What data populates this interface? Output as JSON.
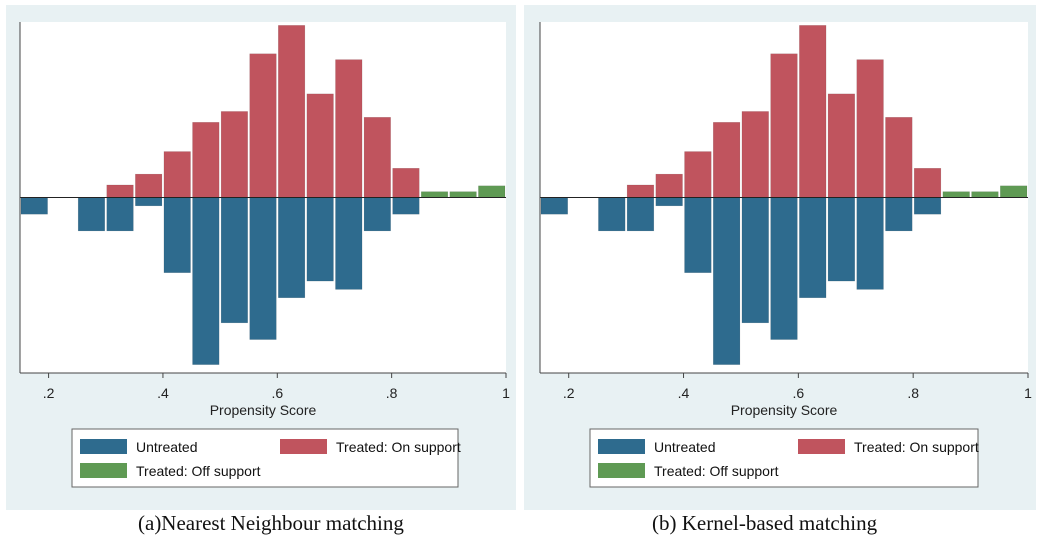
{
  "chart_data": [
    {
      "type": "bar",
      "caption": "(a)Nearest Neighbour matching",
      "xlabel": "Propensity Score",
      "x_ticks": [
        ".2",
        ".4",
        ".6",
        ".8",
        "1"
      ],
      "x_tick_values": [
        0.2,
        0.4,
        0.6,
        0.8,
        1.0
      ],
      "xlim": [
        0.15,
        1.0
      ],
      "ylim": [
        -2.1,
        2.1
      ],
      "grid": false,
      "legend_position": "bottom",
      "legend": [
        "Untreated",
        "Treated: On support",
        "Treated: Off support"
      ],
      "colors": {
        "Untreated": "#2e6b8e",
        "Treated: On support": "#c0545e",
        "Treated: Off support": "#5f9a54",
        "panel_bg": "#e8f1f3"
      },
      "bin_width": 0.05,
      "series": [
        {
          "name": "Untreated",
          "direction": "down",
          "x": [
            0.175,
            0.275,
            0.325,
            0.375,
            0.425,
            0.475,
            0.525,
            0.575,
            0.625,
            0.675,
            0.725,
            0.775,
            0.825
          ],
          "values": [
            0.2,
            0.4,
            0.4,
            0.1,
            0.9,
            2.0,
            1.5,
            1.7,
            1.2,
            1.0,
            1.1,
            0.4,
            0.2
          ]
        },
        {
          "name": "Treated: On support",
          "direction": "up",
          "x": [
            0.325,
            0.375,
            0.425,
            0.475,
            0.525,
            0.575,
            0.625,
            0.675,
            0.725,
            0.775,
            0.825
          ],
          "values": [
            0.15,
            0.28,
            0.55,
            0.9,
            1.03,
            1.72,
            2.06,
            1.24,
            1.65,
            0.96,
            0.35
          ]
        },
        {
          "name": "Treated: Off support",
          "direction": "up",
          "x": [
            0.875,
            0.925,
            0.975
          ],
          "values": [
            0.07,
            0.07,
            0.14
          ]
        }
      ]
    },
    {
      "type": "bar",
      "caption": "(b) Kernel-based matching",
      "xlabel": "Propensity Score",
      "x_ticks": [
        ".2",
        ".4",
        ".6",
        ".8",
        "1"
      ],
      "x_tick_values": [
        0.2,
        0.4,
        0.6,
        0.8,
        1.0
      ],
      "xlim": [
        0.15,
        1.0
      ],
      "ylim": [
        -2.1,
        2.1
      ],
      "grid": false,
      "legend_position": "bottom",
      "legend": [
        "Untreated",
        "Treated: On support",
        "Treated: Off support"
      ],
      "colors": {
        "Untreated": "#2e6b8e",
        "Treated: On support": "#c0545e",
        "Treated: Off support": "#5f9a54",
        "panel_bg": "#e8f1f3"
      },
      "bin_width": 0.05,
      "series": [
        {
          "name": "Untreated",
          "direction": "down",
          "x": [
            0.175,
            0.275,
            0.325,
            0.375,
            0.425,
            0.475,
            0.525,
            0.575,
            0.625,
            0.675,
            0.725,
            0.775,
            0.825
          ],
          "values": [
            0.2,
            0.4,
            0.4,
            0.1,
            0.9,
            2.0,
            1.5,
            1.7,
            1.2,
            1.0,
            1.1,
            0.4,
            0.2
          ]
        },
        {
          "name": "Treated: On support",
          "direction": "up",
          "x": [
            0.325,
            0.375,
            0.425,
            0.475,
            0.525,
            0.575,
            0.625,
            0.675,
            0.725,
            0.775,
            0.825
          ],
          "values": [
            0.15,
            0.28,
            0.55,
            0.9,
            1.03,
            1.72,
            2.06,
            1.24,
            1.65,
            0.96,
            0.35
          ]
        },
        {
          "name": "Treated: Off support",
          "direction": "up",
          "x": [
            0.875,
            0.925,
            0.975
          ],
          "values": [
            0.07,
            0.07,
            0.14
          ]
        }
      ]
    }
  ]
}
